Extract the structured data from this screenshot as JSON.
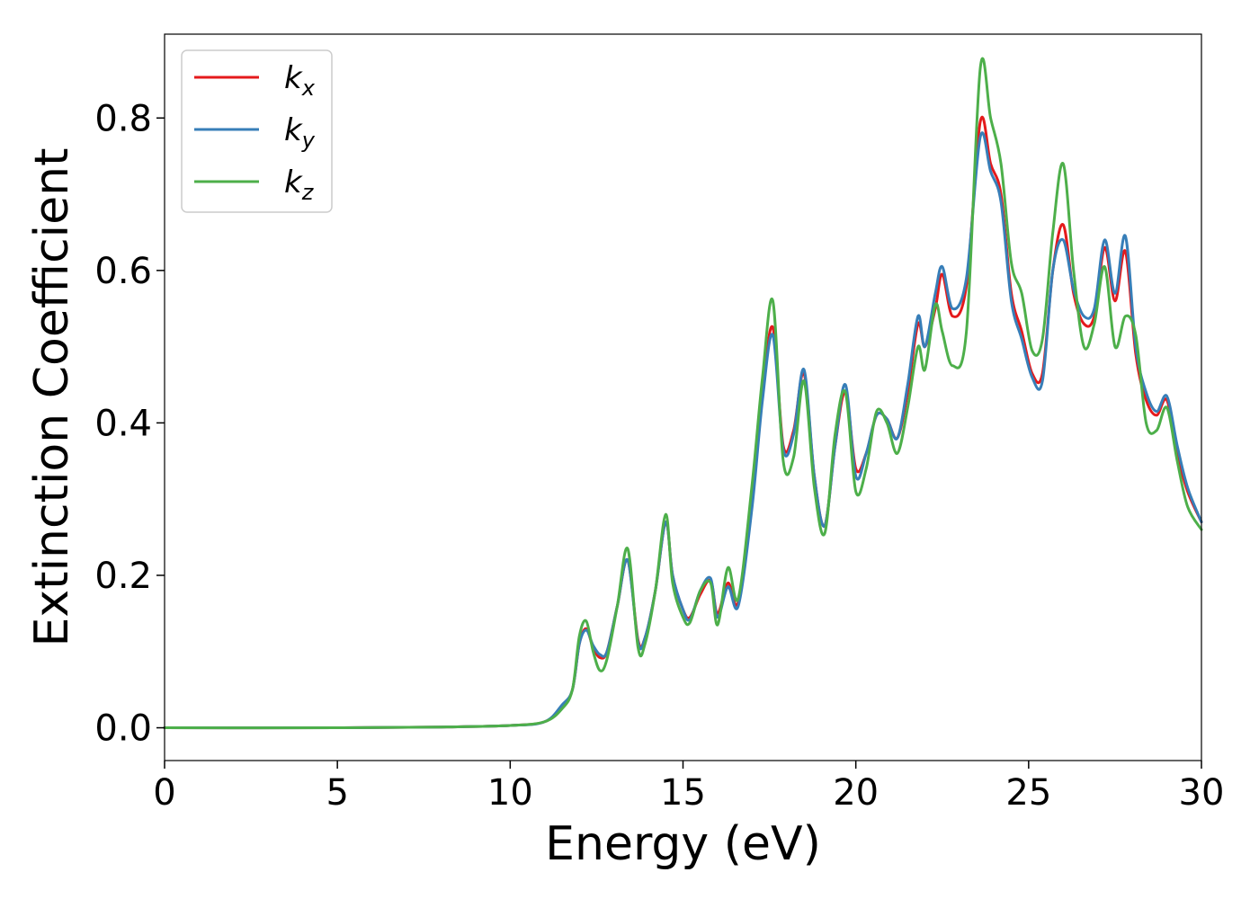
{
  "chart_data": {
    "type": "line",
    "xlabel": "Energy (eV)",
    "ylabel": "Extinction Coefficient",
    "xlim": [
      0,
      30
    ],
    "ylim": [
      -0.043,
      0.91
    ],
    "xticks": [
      0,
      5,
      10,
      15,
      20,
      25,
      30
    ],
    "xtick_labels": [
      "0",
      "5",
      "10",
      "15",
      "20",
      "25",
      "30"
    ],
    "yticks": [
      0.0,
      0.2,
      0.4,
      0.6,
      0.8
    ],
    "ytick_labels": [
      "0.0",
      "0.2",
      "0.4",
      "0.6",
      "0.8"
    ],
    "grid": false,
    "legend_position": "top-left",
    "series": [
      {
        "name": "k_x",
        "legend_base": "k",
        "legend_sub": "x",
        "color": "#e41a1c",
        "points": [
          [
            0,
            0.0
          ],
          [
            5,
            0.0
          ],
          [
            8,
            0.001
          ],
          [
            10,
            0.003
          ],
          [
            11,
            0.008
          ],
          [
            11.5,
            0.028
          ],
          [
            11.8,
            0.05
          ],
          [
            12.0,
            0.11
          ],
          [
            12.2,
            0.13
          ],
          [
            12.4,
            0.105
          ],
          [
            12.6,
            0.092
          ],
          [
            12.8,
            0.1
          ],
          [
            13.1,
            0.16
          ],
          [
            13.4,
            0.22
          ],
          [
            13.7,
            0.115
          ],
          [
            13.9,
            0.118
          ],
          [
            14.2,
            0.18
          ],
          [
            14.5,
            0.27
          ],
          [
            14.7,
            0.2
          ],
          [
            15.0,
            0.155
          ],
          [
            15.2,
            0.145
          ],
          [
            15.5,
            0.175
          ],
          [
            15.8,
            0.193
          ],
          [
            16.0,
            0.15
          ],
          [
            16.3,
            0.19
          ],
          [
            16.6,
            0.165
          ],
          [
            17.0,
            0.3
          ],
          [
            17.3,
            0.44
          ],
          [
            17.6,
            0.525
          ],
          [
            17.9,
            0.37
          ],
          [
            18.2,
            0.39
          ],
          [
            18.5,
            0.465
          ],
          [
            18.8,
            0.33
          ],
          [
            19.1,
            0.265
          ],
          [
            19.4,
            0.37
          ],
          [
            19.7,
            0.44
          ],
          [
            20.0,
            0.34
          ],
          [
            20.3,
            0.36
          ],
          [
            20.6,
            0.41
          ],
          [
            20.9,
            0.405
          ],
          [
            21.2,
            0.38
          ],
          [
            21.5,
            0.44
          ],
          [
            21.8,
            0.53
          ],
          [
            22.0,
            0.5
          ],
          [
            22.3,
            0.55
          ],
          [
            22.5,
            0.595
          ],
          [
            22.8,
            0.54
          ],
          [
            23.2,
            0.58
          ],
          [
            23.6,
            0.795
          ],
          [
            23.9,
            0.74
          ],
          [
            24.2,
            0.7
          ],
          [
            24.5,
            0.57
          ],
          [
            24.8,
            0.52
          ],
          [
            25.1,
            0.465
          ],
          [
            25.4,
            0.465
          ],
          [
            25.7,
            0.6
          ],
          [
            26.0,
            0.66
          ],
          [
            26.3,
            0.57
          ],
          [
            26.6,
            0.53
          ],
          [
            26.9,
            0.54
          ],
          [
            27.2,
            0.63
          ],
          [
            27.5,
            0.56
          ],
          [
            27.8,
            0.625
          ],
          [
            28.1,
            0.49
          ],
          [
            28.4,
            0.43
          ],
          [
            28.7,
            0.41
          ],
          [
            29.0,
            0.43
          ],
          [
            29.3,
            0.36
          ],
          [
            29.6,
            0.31
          ],
          [
            30.0,
            0.27
          ]
        ]
      },
      {
        "name": "k_y",
        "legend_base": "k",
        "legend_sub": "y",
        "color": "#377eb8",
        "points": [
          [
            0,
            0.0
          ],
          [
            5,
            0.0
          ],
          [
            8,
            0.001
          ],
          [
            10,
            0.003
          ],
          [
            11,
            0.008
          ],
          [
            11.5,
            0.03
          ],
          [
            11.8,
            0.05
          ],
          [
            12.0,
            0.11
          ],
          [
            12.2,
            0.128
          ],
          [
            12.4,
            0.108
          ],
          [
            12.6,
            0.096
          ],
          [
            12.8,
            0.1
          ],
          [
            13.1,
            0.16
          ],
          [
            13.4,
            0.22
          ],
          [
            13.7,
            0.112
          ],
          [
            13.9,
            0.118
          ],
          [
            14.2,
            0.18
          ],
          [
            14.5,
            0.27
          ],
          [
            14.7,
            0.2
          ],
          [
            15.0,
            0.155
          ],
          [
            15.2,
            0.142
          ],
          [
            15.5,
            0.18
          ],
          [
            15.8,
            0.196
          ],
          [
            16.0,
            0.145
          ],
          [
            16.3,
            0.185
          ],
          [
            16.6,
            0.16
          ],
          [
            17.0,
            0.29
          ],
          [
            17.3,
            0.43
          ],
          [
            17.6,
            0.515
          ],
          [
            17.9,
            0.365
          ],
          [
            18.2,
            0.385
          ],
          [
            18.5,
            0.47
          ],
          [
            18.8,
            0.33
          ],
          [
            19.1,
            0.265
          ],
          [
            19.4,
            0.37
          ],
          [
            19.7,
            0.45
          ],
          [
            20.0,
            0.33
          ],
          [
            20.3,
            0.36
          ],
          [
            20.6,
            0.41
          ],
          [
            20.9,
            0.405
          ],
          [
            21.2,
            0.38
          ],
          [
            21.5,
            0.45
          ],
          [
            21.8,
            0.54
          ],
          [
            22.0,
            0.5
          ],
          [
            22.3,
            0.57
          ],
          [
            22.5,
            0.605
          ],
          [
            22.8,
            0.55
          ],
          [
            23.2,
            0.59
          ],
          [
            23.6,
            0.775
          ],
          [
            23.9,
            0.73
          ],
          [
            24.2,
            0.69
          ],
          [
            24.5,
            0.56
          ],
          [
            24.8,
            0.51
          ],
          [
            25.1,
            0.46
          ],
          [
            25.4,
            0.455
          ],
          [
            25.7,
            0.6
          ],
          [
            26.0,
            0.64
          ],
          [
            26.3,
            0.575
          ],
          [
            26.6,
            0.54
          ],
          [
            26.9,
            0.55
          ],
          [
            27.2,
            0.64
          ],
          [
            27.5,
            0.57
          ],
          [
            27.8,
            0.645
          ],
          [
            28.1,
            0.5
          ],
          [
            28.4,
            0.44
          ],
          [
            28.7,
            0.415
          ],
          [
            29.0,
            0.435
          ],
          [
            29.3,
            0.37
          ],
          [
            29.6,
            0.315
          ],
          [
            30.0,
            0.27
          ]
        ]
      },
      {
        "name": "k_z",
        "legend_base": "k",
        "legend_sub": "z",
        "color": "#4daf4a",
        "points": [
          [
            0,
            0.0
          ],
          [
            5,
            0.0
          ],
          [
            8,
            0.001
          ],
          [
            10,
            0.003
          ],
          [
            11,
            0.008
          ],
          [
            11.5,
            0.025
          ],
          [
            11.8,
            0.05
          ],
          [
            12.0,
            0.12
          ],
          [
            12.2,
            0.14
          ],
          [
            12.4,
            0.1
          ],
          [
            12.6,
            0.075
          ],
          [
            12.8,
            0.09
          ],
          [
            13.1,
            0.16
          ],
          [
            13.4,
            0.235
          ],
          [
            13.7,
            0.105
          ],
          [
            13.9,
            0.11
          ],
          [
            14.2,
            0.18
          ],
          [
            14.5,
            0.28
          ],
          [
            14.7,
            0.19
          ],
          [
            15.0,
            0.145
          ],
          [
            15.2,
            0.138
          ],
          [
            15.5,
            0.18
          ],
          [
            15.8,
            0.19
          ],
          [
            16.0,
            0.135
          ],
          [
            16.3,
            0.21
          ],
          [
            16.6,
            0.17
          ],
          [
            17.0,
            0.32
          ],
          [
            17.3,
            0.46
          ],
          [
            17.6,
            0.56
          ],
          [
            17.9,
            0.35
          ],
          [
            18.2,
            0.355
          ],
          [
            18.5,
            0.455
          ],
          [
            18.8,
            0.315
          ],
          [
            19.1,
            0.255
          ],
          [
            19.4,
            0.385
          ],
          [
            19.7,
            0.44
          ],
          [
            20.0,
            0.31
          ],
          [
            20.3,
            0.34
          ],
          [
            20.6,
            0.415
          ],
          [
            20.9,
            0.4
          ],
          [
            21.2,
            0.36
          ],
          [
            21.5,
            0.42
          ],
          [
            21.8,
            0.5
          ],
          [
            22.0,
            0.47
          ],
          [
            22.3,
            0.555
          ],
          [
            22.5,
            0.52
          ],
          [
            22.8,
            0.475
          ],
          [
            23.2,
            0.52
          ],
          [
            23.6,
            0.865
          ],
          [
            23.9,
            0.8
          ],
          [
            24.2,
            0.74
          ],
          [
            24.5,
            0.61
          ],
          [
            24.8,
            0.57
          ],
          [
            25.1,
            0.495
          ],
          [
            25.4,
            0.51
          ],
          [
            25.7,
            0.65
          ],
          [
            26.0,
            0.74
          ],
          [
            26.3,
            0.6
          ],
          [
            26.6,
            0.5
          ],
          [
            26.9,
            0.53
          ],
          [
            27.2,
            0.605
          ],
          [
            27.5,
            0.5
          ],
          [
            27.8,
            0.54
          ],
          [
            28.1,
            0.515
          ],
          [
            28.4,
            0.4
          ],
          [
            28.7,
            0.39
          ],
          [
            29.0,
            0.42
          ],
          [
            29.3,
            0.35
          ],
          [
            29.6,
            0.29
          ],
          [
            30.0,
            0.26
          ]
        ]
      }
    ]
  }
}
